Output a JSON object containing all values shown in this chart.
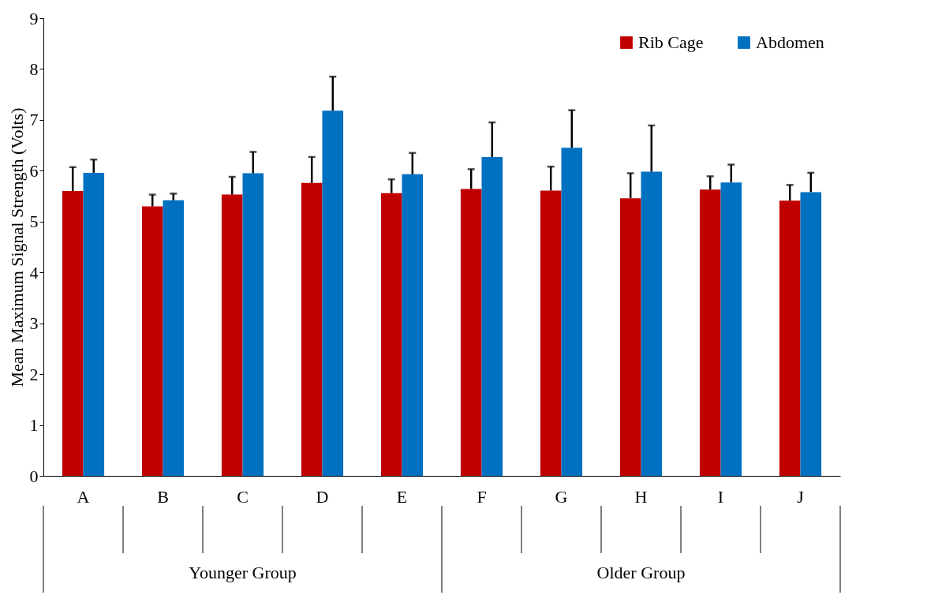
{
  "chart_data": {
    "type": "bar",
    "ylabel": "Mean Maximum Signal Strength (Volts)",
    "categories": [
      "A",
      "B",
      "C",
      "D",
      "E",
      "F",
      "G",
      "H",
      "I",
      "J"
    ],
    "series": [
      {
        "name": "Rib Cage",
        "color": "#c00000",
        "values": [
          5.6,
          5.3,
          5.53,
          5.76,
          5.56,
          5.64,
          5.61,
          5.46,
          5.63,
          5.41
        ],
        "errors": [
          [
            5.6,
            6.07
          ],
          [
            5.3,
            5.53
          ],
          [
            5.53,
            5.88
          ],
          [
            5.76,
            6.27
          ],
          [
            5.56,
            5.83
          ],
          [
            5.64,
            6.03
          ],
          [
            5.61,
            6.08
          ],
          [
            5.46,
            5.95
          ],
          [
            5.63,
            5.89
          ],
          [
            5.41,
            5.72
          ]
        ]
      },
      {
        "name": "Abdomen",
        "color": "#0070c0",
        "values": [
          5.96,
          5.42,
          5.95,
          7.18,
          5.93,
          6.27,
          6.45,
          5.98,
          5.77,
          5.58
        ],
        "errors": [
          [
            5.96,
            6.22
          ],
          [
            5.42,
            5.55
          ],
          [
            5.95,
            6.37
          ],
          [
            7.18,
            7.85
          ],
          [
            5.93,
            6.35
          ],
          [
            6.27,
            6.95
          ],
          [
            6.45,
            7.19
          ],
          [
            5.98,
            6.89
          ],
          [
            5.77,
            6.12
          ],
          [
            5.58,
            5.96
          ]
        ]
      }
    ],
    "annotations": [
      "Younger Group",
      "Older Group"
    ],
    "ylim": [
      0,
      9
    ],
    "yticks": [
      0,
      1,
      2,
      3,
      4,
      5,
      6,
      7,
      8,
      9
    ],
    "grid": false,
    "legend": "top right"
  }
}
